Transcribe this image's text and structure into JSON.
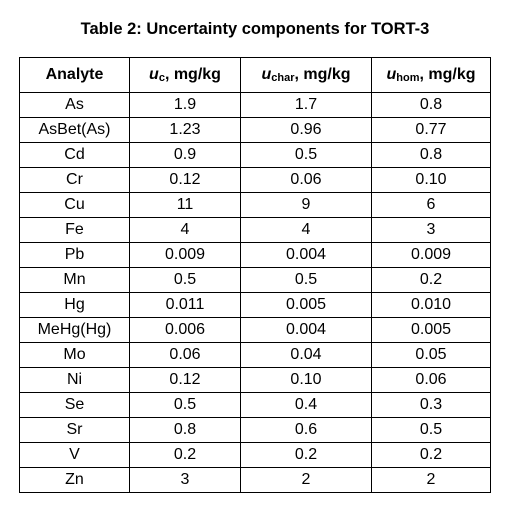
{
  "caption": "Table 2: Uncertainty components for TORT-3",
  "columns": [
    {
      "label": "Analyte"
    },
    {
      "symbol": "u",
      "subscript": "c",
      "unit": ", mg/kg"
    },
    {
      "symbol": "u",
      "subscript": "char",
      "unit": ", mg/kg"
    },
    {
      "symbol": "u",
      "subscript": "hom",
      "unit": ", mg/kg"
    }
  ],
  "rows": [
    [
      "As",
      "1.9",
      "1.7",
      "0.8"
    ],
    [
      "AsBet(As)",
      "1.23",
      "0.96",
      "0.77"
    ],
    [
      "Cd",
      "0.9",
      "0.5",
      "0.8"
    ],
    [
      "Cr",
      "0.12",
      "0.06",
      "0.10"
    ],
    [
      "Cu",
      "11",
      "9",
      "6"
    ],
    [
      "Fe",
      "4",
      "4",
      "3"
    ],
    [
      "Pb",
      "0.009",
      "0.004",
      "0.009"
    ],
    [
      "Mn",
      "0.5",
      "0.5",
      "0.2"
    ],
    [
      "Hg",
      "0.011",
      "0.005",
      "0.010"
    ],
    [
      "MeHg(Hg)",
      "0.006",
      "0.004",
      "0.005"
    ],
    [
      "Mo",
      "0.06",
      "0.04",
      "0.05"
    ],
    [
      "Ni",
      "0.12",
      "0.10",
      "0.06"
    ],
    [
      "Se",
      "0.5",
      "0.4",
      "0.3"
    ],
    [
      "Sr",
      "0.8",
      "0.6",
      "0.5"
    ],
    [
      "V",
      "0.2",
      "0.2",
      "0.2"
    ],
    [
      "Zn",
      "3",
      "2",
      "2"
    ]
  ]
}
